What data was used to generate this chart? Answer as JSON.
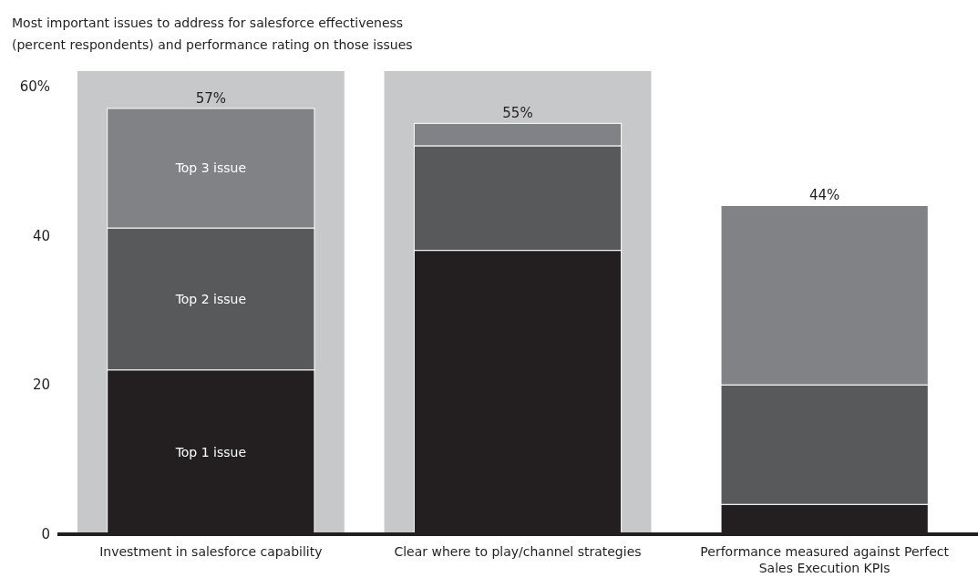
{
  "chart_data": {
    "type": "bar",
    "title": "Most important issues to address for salesforce effectiveness",
    "subtitle": "(percent respondents) and performance rating on those issues",
    "categories": [
      "Investment in salesforce capability",
      "Clear where to play/channel strategies",
      "Performance measured against Perfect Sales Execution KPIs"
    ],
    "stacked": true,
    "series": [
      {
        "name": "Top 1 issue",
        "color": "#231f20",
        "values": [
          22,
          38,
          4
        ]
      },
      {
        "name": "Top 2 issue",
        "color": "#58595b",
        "values": [
          19,
          14,
          16
        ]
      },
      {
        "name": "Top 3 issue",
        "color": "#808285",
        "values": [
          16,
          3,
          24
        ]
      }
    ],
    "totals": [
      "57%",
      "55%",
      "44%"
    ],
    "bands": [
      {
        "axis": "x",
        "from": "Investment in salesforce capability",
        "to": "Investment in salesforce capability",
        "color": "#c7c8ca"
      },
      {
        "axis": "x",
        "from": "Clear where to play/channel strategies",
        "to": "Clear where to play/channel strategies",
        "color": "#c7c8ca"
      }
    ],
    "ylim": [
      0,
      62
    ],
    "yticks": [
      0,
      20,
      40,
      {
        "value": 60,
        "label": "60%"
      }
    ],
    "grid": false,
    "legend": false
  }
}
